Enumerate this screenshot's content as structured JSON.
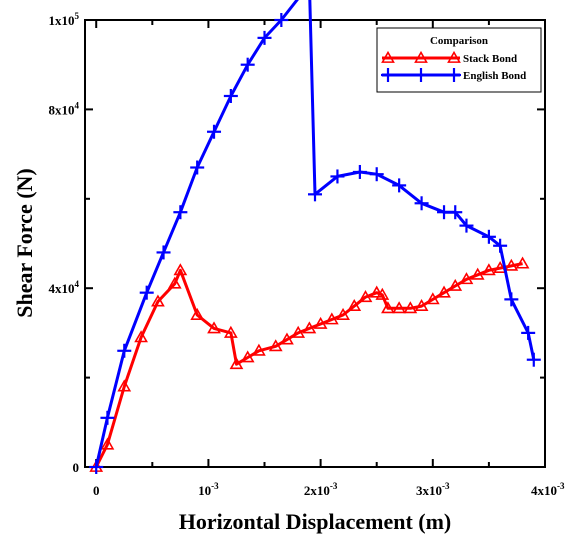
{
  "chart_data": {
    "type": "line",
    "title": "",
    "xlabel": "Horizontal Displacement (m)",
    "ylabel": "Shear Force (N)",
    "xlim": [
      -0.0001,
      0.004
    ],
    "ylim": [
      0,
      100000
    ],
    "grid": false,
    "legend": {
      "title": "Comparison",
      "placement": "top-right"
    },
    "x_ticks": [
      {
        "value": 0,
        "label": "0"
      },
      {
        "value": 0.001,
        "label": "10",
        "exp": "-3"
      },
      {
        "value": 0.002,
        "label": "2x10",
        "exp": "-3"
      },
      {
        "value": 0.003,
        "label": "3x10",
        "exp": "-3"
      },
      {
        "value": 0.004,
        "label": "4x10",
        "exp": "-3"
      }
    ],
    "y_ticks": [
      {
        "value": 0,
        "label": "0"
      },
      {
        "value": 40000,
        "label": "4x10",
        "exp": "4"
      },
      {
        "value": 80000,
        "label": "8x10",
        "exp": "4"
      },
      {
        "value": 100000,
        "label": "1x10",
        "exp": "5"
      }
    ],
    "series": [
      {
        "name": "Stack Bond",
        "color": "#ff0000",
        "marker": "triangle-open",
        "x": [
          0,
          0.0001,
          0.00025,
          0.0004,
          0.00055,
          0.0007,
          0.00075,
          0.0009,
          0.00105,
          0.0012,
          0.00125,
          0.00135,
          0.00145,
          0.0016,
          0.0017,
          0.0018,
          0.0019,
          0.002,
          0.0021,
          0.0022,
          0.0023,
          0.0024,
          0.0025,
          0.00255,
          0.0026,
          0.0027,
          0.0028,
          0.0029,
          0.003,
          0.0031,
          0.0032,
          0.0033,
          0.0034,
          0.0035,
          0.0036,
          0.0037,
          0.0038
        ],
        "y": [
          0,
          5000,
          18000,
          29000,
          37000,
          41000,
          44000,
          34000,
          31000,
          30000,
          23000,
          24500,
          26000,
          27000,
          28500,
          30000,
          31000,
          32000,
          33000,
          34000,
          36000,
          38000,
          39000,
          38500,
          35500,
          35500,
          35500,
          36000,
          37500,
          39000,
          40500,
          42000,
          43000,
          44000,
          44500,
          45000,
          45500
        ]
      },
      {
        "name": "English Bond",
        "color": "#0000ff",
        "marker": "plus",
        "x": [
          0,
          0.0001,
          0.00025,
          0.00045,
          0.0006,
          0.00075,
          0.0009,
          0.00105,
          0.0012,
          0.00135,
          0.0015,
          0.00165,
          0.0019,
          0.00195,
          0.00215,
          0.00235,
          0.0025,
          0.0027,
          0.0029,
          0.0031,
          0.0032,
          0.0033,
          0.0035,
          0.0036,
          0.0037,
          0.00385,
          0.0039
        ],
        "y": [
          0,
          11000,
          26000,
          39000,
          48000,
          57000,
          67000,
          75000,
          83000,
          90000,
          96000,
          100000,
          108000,
          61000,
          65000,
          66000,
          65500,
          63000,
          59000,
          57000,
          57000,
          54000,
          51500,
          49500,
          37500,
          30000,
          24000
        ]
      }
    ]
  }
}
